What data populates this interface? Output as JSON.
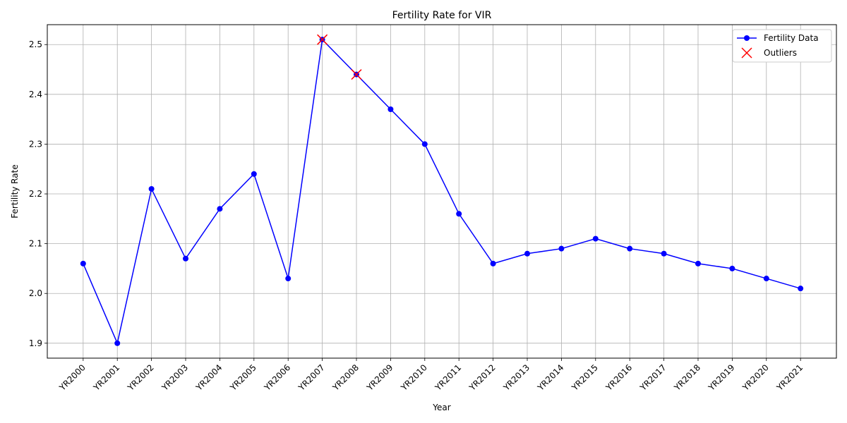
{
  "chart_data": {
    "type": "line",
    "title": "Fertility Rate for VIR",
    "xlabel": "Year",
    "ylabel": "Fertility Rate",
    "categories": [
      "YR2000",
      "YR2001",
      "YR2002",
      "YR2003",
      "YR2004",
      "YR2005",
      "YR2006",
      "YR2007",
      "YR2008",
      "YR2009",
      "YR2010",
      "YR2011",
      "YR2012",
      "YR2013",
      "YR2014",
      "YR2015",
      "YR2016",
      "YR2017",
      "YR2018",
      "YR2019",
      "YR2020",
      "YR2021"
    ],
    "series": [
      {
        "name": "Fertility Data",
        "color": "#0000ff",
        "values": [
          2.06,
          1.9,
          2.21,
          2.07,
          2.17,
          2.24,
          2.03,
          2.51,
          2.44,
          2.37,
          2.3,
          2.16,
          2.06,
          2.08,
          2.09,
          2.11,
          2.09,
          2.08,
          2.06,
          2.05,
          2.03,
          2.01
        ]
      },
      {
        "name": "Outliers",
        "color": "#ff0000",
        "marker": "x",
        "points": [
          {
            "x": "YR2007",
            "y": 2.51
          },
          {
            "x": "YR2008",
            "y": 2.44
          }
        ]
      }
    ],
    "yticks": [
      "1.9",
      "2.0",
      "2.1",
      "2.2",
      "2.3",
      "2.4",
      "2.5"
    ],
    "ylim": [
      1.87,
      2.54
    ],
    "grid": true,
    "legend": "top-right"
  }
}
